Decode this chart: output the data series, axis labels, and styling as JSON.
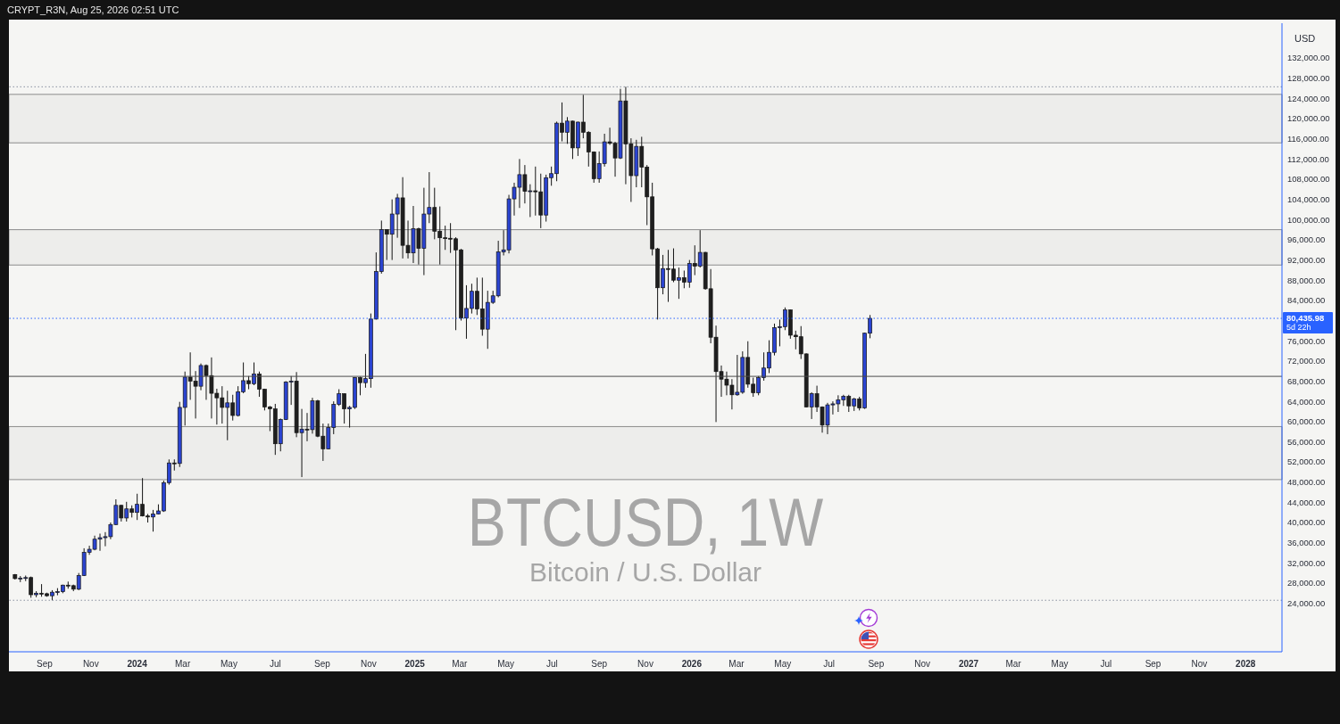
{
  "chart_data": {
    "type": "candlestick",
    "title": "BTCUSD, 1W",
    "subtitle": "Bitcoin / U.S. Dollar",
    "ylabel": "USD",
    "annotations": [
      "CRYPT_R3N, Aug 25, 2026 02:51 UTC",
      "5d 22h"
    ],
    "x": [
      "2023-07-24",
      "2023-07-31",
      "2023-08-07",
      "2023-08-14",
      "2023-08-21",
      "2023-08-28",
      "2023-09-04",
      "2023-09-11",
      "2023-09-18",
      "2023-09-25",
      "2023-10-02",
      "2023-10-09",
      "2023-10-16",
      "2023-10-23",
      "2023-10-30",
      "2023-11-06",
      "2023-11-13",
      "2023-11-20",
      "2023-11-27",
      "2023-12-04",
      "2023-12-11",
      "2023-12-18",
      "2023-12-25",
      "2024-01-01",
      "2024-01-08",
      "2024-01-15",
      "2024-01-22",
      "2024-01-29",
      "2024-02-05",
      "2024-02-12",
      "2024-02-19",
      "2024-02-26",
      "2024-03-04",
      "2024-03-11",
      "2024-03-18",
      "2024-03-25",
      "2024-04-01",
      "2024-04-08",
      "2024-04-15",
      "2024-04-22",
      "2024-04-29",
      "2024-05-06",
      "2024-05-13",
      "2024-05-20",
      "2024-05-27",
      "2024-06-03",
      "2024-06-10",
      "2024-06-17",
      "2024-06-24",
      "2024-07-01",
      "2024-07-08",
      "2024-07-15",
      "2024-07-22",
      "2024-07-29",
      "2024-08-05",
      "2024-08-12",
      "2024-08-19",
      "2024-08-26",
      "2024-09-02",
      "2024-09-09",
      "2024-09-16",
      "2024-09-23",
      "2024-09-30",
      "2024-10-07",
      "2024-10-14",
      "2024-10-21",
      "2024-10-28",
      "2024-11-04",
      "2024-11-11",
      "2024-11-18",
      "2024-11-25",
      "2024-12-02",
      "2024-12-09",
      "2024-12-16",
      "2024-12-23",
      "2024-12-30",
      "2025-01-06",
      "2025-01-13",
      "2025-01-20",
      "2025-01-27",
      "2025-02-03",
      "2025-02-10",
      "2025-02-17",
      "2025-02-24",
      "2025-03-03",
      "2025-03-10",
      "2025-03-17",
      "2025-03-24",
      "2025-03-31",
      "2025-04-07",
      "2025-04-14",
      "2025-04-21",
      "2025-04-28",
      "2025-05-05",
      "2025-05-12",
      "2025-05-19",
      "2025-05-26",
      "2025-06-02",
      "2025-06-09",
      "2025-06-16",
      "2025-06-23",
      "2025-06-30",
      "2025-07-07",
      "2025-07-14",
      "2025-07-21",
      "2025-07-28",
      "2025-08-04",
      "2025-08-11",
      "2025-08-18",
      "2025-08-25",
      "2025-09-01",
      "2025-09-08",
      "2025-09-15",
      "2025-09-22",
      "2025-09-29",
      "2025-10-06",
      "2025-10-13",
      "2025-10-20",
      "2025-10-27",
      "2025-11-03",
      "2025-11-10",
      "2025-11-17",
      "2025-11-24",
      "2025-12-01",
      "2025-12-08",
      "2025-12-15",
      "2025-12-22",
      "2025-12-29",
      "2026-01-05",
      "2026-01-12",
      "2026-01-19",
      "2026-01-26",
      "2026-02-02",
      "2026-02-09",
      "2026-02-16",
      "2026-02-23",
      "2026-03-02",
      "2026-03-09",
      "2026-03-16",
      "2026-03-23",
      "2026-03-30",
      "2026-04-06",
      "2026-04-13",
      "2026-04-20",
      "2026-04-27",
      "2026-05-04",
      "2026-05-11",
      "2026-05-18",
      "2026-05-25",
      "2026-06-01",
      "2026-06-08",
      "2026-06-15",
      "2026-06-22",
      "2026-06-29",
      "2026-07-06",
      "2026-07-13",
      "2026-07-20",
      "2026-07-27",
      "2026-08-03",
      "2026-08-10",
      "2026-08-17",
      "2026-08-24"
    ],
    "ohlc": [
      [
        29700,
        29800,
        28700,
        28900
      ],
      [
        28900,
        29400,
        28200,
        29000
      ],
      [
        29000,
        29500,
        28400,
        29100
      ],
      [
        29100,
        29300,
        25100,
        25700
      ],
      [
        25700,
        26400,
        25200,
        26000
      ],
      [
        26000,
        27800,
        25300,
        25900
      ],
      [
        25900,
        26100,
        25300,
        25500
      ],
      [
        25500,
        26600,
        24600,
        26200
      ],
      [
        26200,
        27000,
        25600,
        26300
      ],
      [
        26300,
        27700,
        26000,
        27600
      ],
      [
        27600,
        28300,
        26900,
        27500
      ],
      [
        27500,
        27700,
        26400,
        26800
      ],
      [
        26800,
        30000,
        26600,
        29500
      ],
      [
        29500,
        34900,
        29400,
        34100
      ],
      [
        34100,
        35400,
        33600,
        34700
      ],
      [
        34700,
        37400,
        34500,
        36700
      ],
      [
        36700,
        37800,
        34400,
        37000
      ],
      [
        37000,
        38100,
        35300,
        37200
      ],
      [
        37200,
        40000,
        36700,
        39600
      ],
      [
        39600,
        44600,
        39500,
        43400
      ],
      [
        43400,
        43500,
        40200,
        40900
      ],
      [
        40900,
        44100,
        40200,
        42700
      ],
      [
        42700,
        43400,
        41000,
        42000
      ],
      [
        42000,
        45700,
        40500,
        43600
      ],
      [
        43600,
        48800,
        41200,
        41300
      ],
      [
        41300,
        41700,
        40000,
        41100
      ],
      [
        41100,
        42500,
        38200,
        41700
      ],
      [
        41700,
        43600,
        41600,
        42300
      ],
      [
        42300,
        48300,
        42100,
        47900
      ],
      [
        47900,
        52500,
        47500,
        51800
      ],
      [
        51800,
        52500,
        50300,
        51700
      ],
      [
        51700,
        63900,
        51000,
        62800
      ],
      [
        62800,
        69900,
        59200,
        68800
      ],
      [
        68800,
        73700,
        64300,
        68000
      ],
      [
        68000,
        70000,
        60600,
        67000
      ],
      [
        67000,
        71500,
        66200,
        71100
      ],
      [
        71100,
        71300,
        64300,
        69100
      ],
      [
        69100,
        72700,
        60600,
        65600
      ],
      [
        65600,
        66500,
        59400,
        64700
      ],
      [
        64700,
        67000,
        59600,
        62800
      ],
      [
        62800,
        66100,
        56300,
        63700
      ],
      [
        63700,
        65300,
        60200,
        61200
      ],
      [
        61200,
        67000,
        61000,
        65900
      ],
      [
        65900,
        71700,
        65600,
        68100
      ],
      [
        68100,
        69000,
        66400,
        67500
      ],
      [
        67500,
        71700,
        67200,
        69400
      ],
      [
        69400,
        69900,
        64900,
        66400
      ],
      [
        66400,
        66500,
        62200,
        62900
      ],
      [
        62900,
        63100,
        58100,
        62500
      ],
      [
        62500,
        63500,
        53400,
        55600
      ],
      [
        55600,
        60600,
        54100,
        60400
      ],
      [
        60400,
        68000,
        60300,
        67800
      ],
      [
        67800,
        69000,
        63300,
        68000
      ],
      [
        68000,
        69800,
        56900,
        57800
      ],
      [
        57800,
        62500,
        49000,
        58500
      ],
      [
        58500,
        61700,
        56100,
        58400
      ],
      [
        58400,
        64700,
        57600,
        64100
      ],
      [
        64100,
        64300,
        56900,
        57100
      ],
      [
        57100,
        59600,
        52200,
        54600
      ],
      [
        54600,
        59600,
        54500,
        58800
      ],
      [
        58800,
        64000,
        57500,
        63400
      ],
      [
        63400,
        66400,
        63100,
        65500
      ],
      [
        65500,
        65600,
        59600,
        62500
      ],
      [
        62500,
        63100,
        58800,
        62800
      ],
      [
        62800,
        68800,
        62500,
        68700
      ],
      [
        68700,
        68900,
        65200,
        67700
      ],
      [
        67700,
        73400,
        66700,
        68500
      ],
      [
        68500,
        81400,
        66700,
        80300
      ],
      [
        80300,
        93500,
        80200,
        89700
      ],
      [
        89700,
        99800,
        89300,
        98000
      ],
      [
        98000,
        98100,
        92000,
        97100
      ],
      [
        97100,
        104000,
        92000,
        101100
      ],
      [
        101100,
        105100,
        96400,
        104300
      ],
      [
        104300,
        108400,
        92300,
        94900
      ],
      [
        94900,
        99800,
        92300,
        93400
      ],
      [
        93400,
        102700,
        91400,
        98200
      ],
      [
        98200,
        98400,
        91100,
        94300
      ],
      [
        94300,
        106300,
        89000,
        101100
      ],
      [
        101100,
        109400,
        99300,
        102400
      ],
      [
        102400,
        106300,
        96100,
        97700
      ],
      [
        97700,
        102600,
        91100,
        96400
      ],
      [
        96400,
        98800,
        94000,
        96300
      ],
      [
        96300,
        99300,
        93400,
        96200
      ],
      [
        96200,
        96500,
        78100,
        94000
      ],
      [
        94000,
        94200,
        80000,
        80500
      ],
      [
        80500,
        87000,
        76400,
        82400
      ],
      [
        82400,
        87300,
        81400,
        85800
      ],
      [
        85800,
        88500,
        81100,
        82300
      ],
      [
        82300,
        88500,
        77000,
        78300
      ],
      [
        78300,
        85900,
        74400,
        83600
      ],
      [
        83600,
        85900,
        83300,
        84900
      ],
      [
        84900,
        95800,
        84600,
        93600
      ],
      [
        93600,
        97900,
        92900,
        94000
      ],
      [
        94000,
        104900,
        93300,
        104100
      ],
      [
        104100,
        107300,
        100800,
        106400
      ],
      [
        106400,
        112000,
        102300,
        108900
      ],
      [
        108900,
        110800,
        103200,
        105600
      ],
      [
        105600,
        107000,
        100500,
        105700
      ],
      [
        105700,
        110500,
        100800,
        105500
      ],
      [
        105500,
        109100,
        98300,
        100900
      ],
      [
        100900,
        108900,
        99600,
        108300
      ],
      [
        108300,
        110500,
        106700,
        109100
      ],
      [
        109100,
        119400,
        107600,
        119100
      ],
      [
        119100,
        123200,
        115500,
        117300
      ],
      [
        117300,
        120300,
        115000,
        119500
      ],
      [
        119500,
        119600,
        112000,
        114200
      ],
      [
        114200,
        119400,
        112600,
        119300
      ],
      [
        119300,
        124700,
        116100,
        117300
      ],
      [
        117300,
        117500,
        110500,
        113400
      ],
      [
        113400,
        113500,
        107300,
        108100
      ],
      [
        108100,
        113500,
        107300,
        111100
      ],
      [
        111100,
        117000,
        110500,
        115400
      ],
      [
        115400,
        118200,
        114800,
        115100
      ],
      [
        115100,
        115400,
        108500,
        112200
      ],
      [
        112200,
        125900,
        112000,
        123500
      ],
      [
        123500,
        126300,
        107000,
        115000
      ],
      [
        115000,
        116100,
        103500,
        108700
      ],
      [
        108700,
        115800,
        106400,
        114500
      ],
      [
        114500,
        116400,
        106400,
        110400
      ],
      [
        110400,
        110800,
        98900,
        104500
      ],
      [
        104500,
        107300,
        92900,
        94200
      ],
      [
        94200,
        94400,
        80200,
        86500
      ],
      [
        86500,
        93000,
        85200,
        90300
      ],
      [
        90300,
        94000,
        83700,
        90200
      ],
      [
        90200,
        94300,
        87600,
        88000
      ],
      [
        88000,
        90500,
        84300,
        88500
      ],
      [
        88500,
        89900,
        86400,
        87600
      ],
      [
        87600,
        92000,
        86500,
        91300
      ],
      [
        91300,
        94900,
        89000,
        90800
      ],
      [
        90800,
        97900,
        90500,
        93500
      ],
      [
        93500,
        93600,
        86100,
        86300
      ],
      [
        86300,
        90200,
        75500,
        76700
      ],
      [
        76700,
        79000,
        59900,
        69900
      ],
      [
        69900,
        71100,
        64900,
        68400
      ],
      [
        68400,
        69900,
        65200,
        67200
      ],
      [
        67200,
        68400,
        62400,
        65300
      ],
      [
        65300,
        73200,
        65100,
        65800
      ],
      [
        65800,
        73900,
        65500,
        72700
      ],
      [
        72700,
        75900,
        66700,
        67400
      ],
      [
        67400,
        68700,
        64900,
        65700
      ],
      [
        65700,
        69000,
        65200,
        68700
      ],
      [
        68700,
        73700,
        68100,
        70600
      ],
      [
        70600,
        76100,
        69600,
        73700
      ],
      [
        73700,
        79400,
        73100,
        78600
      ],
      [
        78600,
        80200,
        74900,
        78800
      ],
      [
        78800,
        82600,
        78100,
        82100
      ],
      [
        82100,
        82200,
        76400,
        77100
      ],
      [
        77100,
        78000,
        74300,
        76800
      ],
      [
        76800,
        78900,
        72400,
        73400
      ],
      [
        73400,
        73500,
        62800,
        62900
      ],
      [
        62900,
        65800,
        60500,
        65500
      ],
      [
        65500,
        67100,
        61900,
        62900
      ],
      [
        62900,
        63000,
        57800,
        59300
      ],
      [
        59300,
        63700,
        57500,
        63300
      ],
      [
        63300,
        64000,
        61400,
        63500
      ],
      [
        63500,
        65200,
        61900,
        64300
      ],
      [
        64300,
        65300,
        63100,
        65000
      ],
      [
        65000,
        65300,
        61900,
        63100
      ],
      [
        63100,
        64700,
        62100,
        64500
      ],
      [
        64500,
        64900,
        62200,
        62700
      ],
      [
        62700,
        77600,
        62500,
        77500
      ],
      [
        77500,
        81100,
        76500,
        80435.98
      ]
    ],
    "colors": [
      "#1f1f1f",
      "#2b44d1",
      "#2b44d1",
      "#1f1f1f",
      "#2b44d1",
      "#1f1f1f",
      "#1f1f1f",
      "#2b44d1",
      "#2b44d1",
      "#2b44d1",
      "#1f1f1f",
      "#1f1f1f",
      "#2b44d1",
      "#2b44d1",
      "#2b44d1",
      "#2b44d1",
      "#2b44d1",
      "#2b44d1",
      "#2b44d1",
      "#2b44d1",
      "#1f1f1f",
      "#2b44d1",
      "#1f1f1f",
      "#2b44d1",
      "#1f1f1f",
      "#1f1f1f",
      "#2b44d1",
      "#2b44d1",
      "#2b44d1",
      "#2b44d1",
      "#1f1f1f",
      "#2b44d1",
      "#2b44d1",
      "#1f1f1f",
      "#1f1f1f",
      "#2b44d1",
      "#1f1f1f",
      "#1f1f1f",
      "#1f1f1f",
      "#1f1f1f",
      "#2b44d1",
      "#1f1f1f",
      "#2b44d1",
      "#2b44d1",
      "#1f1f1f",
      "#2b44d1",
      "#1f1f1f",
      "#1f1f1f",
      "#1f1f1f",
      "#1f1f1f",
      "#2b44d1",
      "#2b44d1",
      "#2b44d1",
      "#1f1f1f",
      "#2b44d1",
      "#1f1f1f",
      "#2b44d1",
      "#1f1f1f",
      "#1f1f1f",
      "#2b44d1",
      "#2b44d1",
      "#2b44d1",
      "#1f1f1f",
      "#2b44d1",
      "#2b44d1",
      "#1f1f1f",
      "#2b44d1",
      "#2b44d1",
      "#2b44d1",
      "#2b44d1",
      "#1f1f1f",
      "#2b44d1",
      "#2b44d1",
      "#1f1f1f",
      "#1f1f1f",
      "#2b44d1",
      "#1f1f1f",
      "#2b44d1",
      "#2b44d1",
      "#1f1f1f",
      "#1f1f1f",
      "#1f1f1f",
      "#1f1f1f",
      "#1f1f1f",
      "#1f1f1f",
      "#2b44d1",
      "#2b44d1",
      "#1f1f1f",
      "#1f1f1f",
      "#2b44d1",
      "#2b44d1",
      "#2b44d1",
      "#2b44d1",
      "#2b44d1",
      "#2b44d1",
      "#2b44d1",
      "#1f1f1f",
      "#2b44d1",
      "#1f1f1f",
      "#1f1f1f",
      "#2b44d1",
      "#2b44d1",
      "#2b44d1",
      "#1f1f1f",
      "#2b44d1",
      "#1f1f1f",
      "#2b44d1",
      "#1f1f1f",
      "#1f1f1f",
      "#1f1f1f",
      "#2b44d1",
      "#2b44d1",
      "#1f1f1f",
      "#1f1f1f",
      "#2b44d1",
      "#1f1f1f",
      "#1f1f1f",
      "#2b44d1",
      "#1f1f1f",
      "#1f1f1f",
      "#1f1f1f",
      "#1f1f1f",
      "#2b44d1",
      "#1f1f1f",
      "#1f1f1f",
      "#2b44d1",
      "#1f1f1f",
      "#2b44d1",
      "#1f1f1f",
      "#2b44d1",
      "#1f1f1f",
      "#1f1f1f",
      "#1f1f1f",
      "#1f1f1f",
      "#1f1f1f",
      "#1f1f1f",
      "#2b44d1",
      "#2b44d1",
      "#1f1f1f",
      "#1f1f1f",
      "#2b44d1",
      "#2b44d1",
      "#2b44d1",
      "#2b44d1",
      "#2b44d1",
      "#2b44d1",
      "#1f1f1f",
      "#1f1f1f",
      "#1f1f1f",
      "#1f1f1f",
      "#2b44d1",
      "#1f1f1f",
      "#1f1f1f",
      "#2b44d1",
      "#2b44d1",
      "#2b44d1",
      "#2b44d1",
      "#1f1f1f",
      "#2b44d1",
      "#1f1f1f",
      "#2b44d1",
      "#2b44d1"
    ],
    "xlim": [
      "2023-07-16",
      "2028-02-18"
    ],
    "xticks": [
      {
        "value": "2023-09-01",
        "label": "Sep"
      },
      {
        "value": "2023-11-01",
        "label": "Nov"
      },
      {
        "value": "2024-01-01",
        "label": "2024"
      },
      {
        "value": "2024-03-01",
        "label": "Mar"
      },
      {
        "value": "2024-05-01",
        "label": "May"
      },
      {
        "value": "2024-07-01",
        "label": "Jul"
      },
      {
        "value": "2024-09-01",
        "label": "Sep"
      },
      {
        "value": "2024-11-01",
        "label": "Nov"
      },
      {
        "value": "2025-01-01",
        "label": "2025"
      },
      {
        "value": "2025-03-01",
        "label": "Mar"
      },
      {
        "value": "2025-05-01",
        "label": "May"
      },
      {
        "value": "2025-07-01",
        "label": "Jul"
      },
      {
        "value": "2025-09-01",
        "label": "Sep"
      },
      {
        "value": "2025-11-01",
        "label": "Nov"
      },
      {
        "value": "2026-01-01",
        "label": "2026"
      },
      {
        "value": "2026-03-01",
        "label": "Mar"
      },
      {
        "value": "2026-05-01",
        "label": "May"
      },
      {
        "value": "2026-07-01",
        "label": "Jul"
      },
      {
        "value": "2026-09-01",
        "label": "Sep"
      },
      {
        "value": "2026-11-01",
        "label": "Nov"
      },
      {
        "value": "2027-01-01",
        "label": "2027"
      },
      {
        "value": "2027-03-01",
        "label": "Mar"
      },
      {
        "value": "2027-05-01",
        "label": "May"
      },
      {
        "value": "2027-07-01",
        "label": "Jul"
      },
      {
        "value": "2027-09-01",
        "label": "Sep"
      },
      {
        "value": "2027-11-01",
        "label": "Nov"
      },
      {
        "value": "2028-01-01",
        "label": "2028"
      }
    ],
    "ylim": [
      14400,
      138900
    ],
    "yticks": [
      {
        "value": 24000,
        "label": "24,000.00"
      },
      {
        "value": 28000,
        "label": "28,000.00"
      },
      {
        "value": 32000,
        "label": "32,000.00"
      },
      {
        "value": 36000,
        "label": "36,000.00"
      },
      {
        "value": 40000,
        "label": "40,000.00"
      },
      {
        "value": 44000,
        "label": "44,000.00"
      },
      {
        "value": 48000,
        "label": "48,000.00"
      },
      {
        "value": 52000,
        "label": "52,000.00"
      },
      {
        "value": 56000,
        "label": "56,000.00"
      },
      {
        "value": 60000,
        "label": "60,000.00"
      },
      {
        "value": 64000,
        "label": "64,000.00"
      },
      {
        "value": 68000,
        "label": "68,000.00"
      },
      {
        "value": 72000,
        "label": "72,000.00"
      },
      {
        "value": 76000,
        "label": "76,000.00"
      },
      {
        "value": 84000,
        "label": "84,000.00"
      },
      {
        "value": 88000,
        "label": "88,000.00"
      },
      {
        "value": 92000,
        "label": "92,000.00"
      },
      {
        "value": 96000,
        "label": "96,000.00"
      },
      {
        "value": 100000,
        "label": "100,000.00"
      },
      {
        "value": 104000,
        "label": "104,000.00"
      },
      {
        "value": 108000,
        "label": "108,000.00"
      },
      {
        "value": 112000,
        "label": "112,000.00"
      },
      {
        "value": 116000,
        "label": "116,000.00"
      },
      {
        "value": 120000,
        "label": "120,000.00"
      },
      {
        "value": 124000,
        "label": "124,000.00"
      },
      {
        "value": 128000,
        "label": "128,000.00"
      },
      {
        "value": 132000,
        "label": "132,000.00"
      }
    ],
    "ref_lines": [
      {
        "axis": "y",
        "value": 126300,
        "color": "#8a90a0",
        "line_style": "dotted"
      },
      {
        "axis": "y",
        "value": 24600,
        "color": "#8a90a0",
        "line_style": "dotted"
      },
      {
        "axis": "y",
        "value": 68950,
        "color": "#4a4a4a",
        "line_style": "solid"
      },
      {
        "axis": "y",
        "value": 80435.98,
        "label": "80,435.98",
        "color": "#2962ff",
        "line_style": "dotted"
      }
    ],
    "bands": [
      {
        "axis": "y",
        "from": 115200,
        "to": 124800,
        "color": "#8c8c8c"
      },
      {
        "axis": "y",
        "from": 91000,
        "to": 98000,
        "color": "#8c8c8c"
      },
      {
        "axis": "y",
        "from": 48500,
        "to": 59000,
        "color": "#8c8c8c"
      }
    ]
  }
}
